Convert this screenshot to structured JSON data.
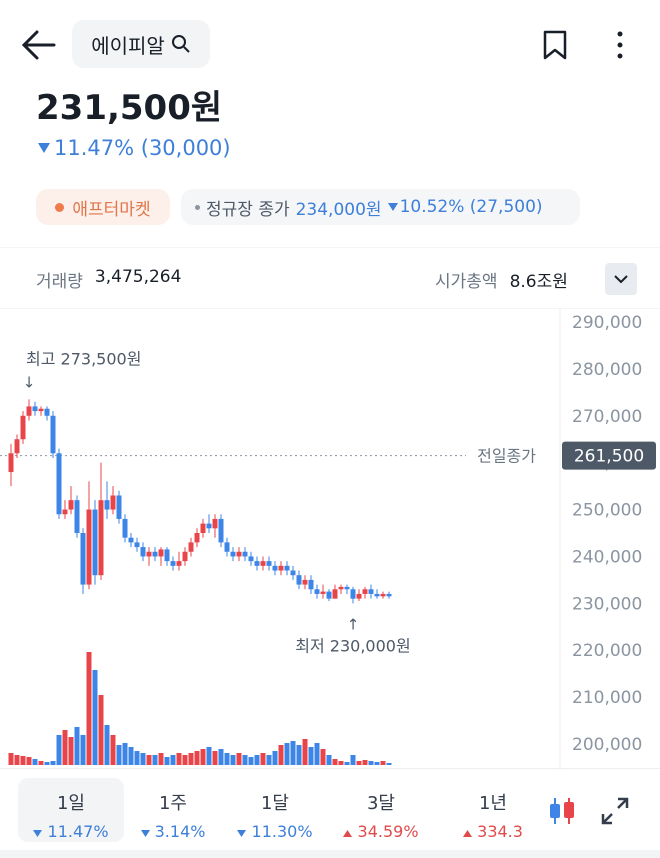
{
  "header": {
    "title": "에이피알"
  },
  "price": {
    "current": "231,500원",
    "change": "11.47% (30,000)",
    "direction": "down"
  },
  "tags": {
    "after_market": "애프터마켓",
    "regular_label": "정규장 종가",
    "regular_price": "234,000원",
    "regular_change": "10.52% (27,500)",
    "regular_direction": "down"
  },
  "stats": {
    "volume_label": "거래량",
    "volume": "3,475,264",
    "cap_label": "시가총액",
    "cap": "8.6조원"
  },
  "chart_data": {
    "type": "candlestick",
    "ylim": [
      195000,
      292000
    ],
    "yticks": [
      {
        "value": 200000,
        "label": "200,000"
      },
      {
        "value": 210000,
        "label": "210,000"
      },
      {
        "value": 220000,
        "label": "220,000"
      },
      {
        "value": 230000,
        "label": "230,000"
      },
      {
        "value": 240000,
        "label": "240,000"
      },
      {
        "value": 250000,
        "label": "250,000"
      },
      {
        "value": 260000,
        "label": "260,000"
      },
      {
        "value": 270000,
        "label": "270,000"
      },
      {
        "value": 280000,
        "label": "280,000"
      },
      {
        "value": 290000,
        "label": "290,000"
      }
    ],
    "prev_close": {
      "value": 261500,
      "label": "261,500"
    },
    "prev_close_name": "전일종가",
    "high_annotation": "최고 273,500원",
    "low_annotation": "최저 230,000원",
    "up_color": "#e8454a",
    "down_color": "#3d85e6",
    "open": [
      258000,
      262000,
      265000,
      270000,
      272000,
      271000,
      271500,
      270000,
      262000,
      249000,
      250000,
      252000,
      245000,
      234000,
      250000,
      236000,
      252000,
      250000,
      253000,
      248000,
      244000,
      243000,
      242000,
      240000,
      241000,
      240000,
      241500,
      239000,
      238000,
      239000,
      241000,
      243000,
      245000,
      247000,
      246000,
      248000,
      243000,
      241000,
      240000,
      241000,
      240000,
      239000,
      238000,
      239000,
      238000,
      237000,
      238000,
      237000,
      236000,
      234000,
      235000,
      233000,
      232000,
      232500,
      231000,
      233000,
      233500,
      233000,
      231000,
      232000,
      233000,
      232000,
      231500,
      232000
    ],
    "high": [
      264000,
      266000,
      271000,
      273500,
      273000,
      272000,
      272000,
      271000,
      263000,
      252000,
      255000,
      253000,
      246000,
      256000,
      252000,
      260000,
      256000,
      255000,
      254000,
      249000,
      245000,
      244000,
      243000,
      242000,
      242000,
      242000,
      242000,
      240000,
      241000,
      242000,
      244000,
      246000,
      248000,
      249000,
      249000,
      249000,
      244000,
      242000,
      242000,
      242000,
      241000,
      240000,
      240000,
      240000,
      239000,
      239000,
      239000,
      238000,
      237000,
      236000,
      236000,
      234000,
      234000,
      233000,
      234000,
      234000,
      234000,
      233500,
      233000,
      233500,
      234000,
      233000,
      232500,
      232500
    ],
    "low": [
      255000,
      261000,
      264000,
      269000,
      270000,
      270000,
      269000,
      261000,
      248000,
      248000,
      249000,
      244000,
      232000,
      233000,
      234000,
      235000,
      248000,
      249000,
      247000,
      243000,
      242000,
      241000,
      239000,
      238000,
      239000,
      238000,
      238000,
      237000,
      237000,
      238000,
      240000,
      242000,
      244000,
      245000,
      244000,
      242000,
      240000,
      239000,
      239000,
      239000,
      238000,
      237000,
      237000,
      237000,
      236000,
      236000,
      236000,
      235000,
      233000,
      233000,
      232000,
      231000,
      231000,
      230500,
      231000,
      232000,
      232000,
      230000,
      230500,
      231000,
      231000,
      231000,
      231000,
      231000
    ],
    "close": [
      262000,
      265000,
      270000,
      272000,
      271000,
      271500,
      270000,
      262000,
      249000,
      250000,
      252000,
      245000,
      234000,
      250000,
      236000,
      252000,
      250000,
      253000,
      248000,
      244000,
      243000,
      242000,
      240000,
      241000,
      240000,
      241500,
      239000,
      238000,
      239000,
      241000,
      243000,
      245000,
      247000,
      246000,
      248000,
      243000,
      241000,
      240000,
      241000,
      240000,
      239000,
      238000,
      239000,
      238000,
      237000,
      238000,
      237000,
      236000,
      234000,
      235000,
      233000,
      232000,
      232500,
      231000,
      233000,
      233500,
      233000,
      231000,
      232000,
      233000,
      232000,
      231500,
      232000,
      231500
    ],
    "volume_lim": [
      0,
      10000000
    ],
    "volume": [
      960000,
      800000,
      720000,
      640000,
      480000,
      320000,
      240000,
      320000,
      2400000,
      2800000,
      2240000,
      3040000,
      2400000,
      9040000,
      7600000,
      5600000,
      3200000,
      2400000,
      1600000,
      1760000,
      1440000,
      1120000,
      960000,
      800000,
      800000,
      960000,
      640000,
      800000,
      960000,
      800000,
      960000,
      1120000,
      1280000,
      1440000,
      1120000,
      1280000,
      960000,
      800000,
      960000,
      800000,
      640000,
      800000,
      960000,
      800000,
      1120000,
      1600000,
      1760000,
      1920000,
      1600000,
      2080000,
      1440000,
      1760000,
      1280000,
      800000,
      480000,
      320000,
      240000,
      800000,
      320000,
      400000,
      320000,
      240000,
      320000,
      160000
    ]
  },
  "tabs": [
    {
      "label": "1일",
      "change": "11.47%",
      "direction": "down"
    },
    {
      "label": "1주",
      "change": "3.14%",
      "direction": "down"
    },
    {
      "label": "1달",
      "change": "11.30%",
      "direction": "down"
    },
    {
      "label": "3달",
      "change": "34.59%",
      "direction": "up"
    },
    {
      "label": "1년",
      "change": "334.3",
      "direction": "up"
    }
  ]
}
